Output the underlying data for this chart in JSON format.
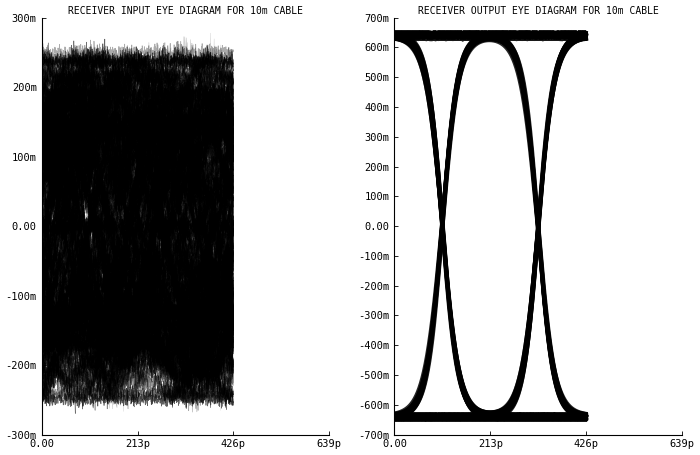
{
  "left_title": "RECEIVER INPUT EYE DIAGRAM FOR 10m CABLE",
  "right_title": "RECEIVER OUTPUT EYE DIAGRAM FOR 10m CABLE",
  "left_ylim": [
    -0.3,
    0.3
  ],
  "right_ylim": [
    -0.7,
    0.7
  ],
  "xlim_max": 6.39e-10,
  "xticks": [
    0.0,
    2.13e-10,
    4.26e-10,
    6.39e-10
  ],
  "xtick_labels": [
    "0.00",
    "213p",
    "426p",
    "639p"
  ],
  "left_yticks": [
    -0.3,
    -0.2,
    -0.1,
    0.0,
    0.1,
    0.2,
    0.3
  ],
  "left_ytick_labels": [
    "-300m",
    "-200m",
    "-100m",
    "0.00",
    "100m",
    "200m",
    "300m"
  ],
  "right_yticks": [
    -0.7,
    -0.6,
    -0.5,
    -0.4,
    -0.3,
    -0.2,
    -0.1,
    0.0,
    0.1,
    0.2,
    0.3,
    0.4,
    0.5,
    0.6,
    0.7
  ],
  "right_ytick_labels": [
    "-700m",
    "-600m",
    "-500m",
    "-400m",
    "-300m",
    "-200m",
    "-100m",
    "0.00",
    "100m",
    "200m",
    "300m",
    "400m",
    "500m",
    "600m",
    "700m"
  ],
  "period": 2.13e-10,
  "amplitude_in": 0.25,
  "amplitude_out": 0.65,
  "bg_color": "#ffffff",
  "line_color": "#000000"
}
